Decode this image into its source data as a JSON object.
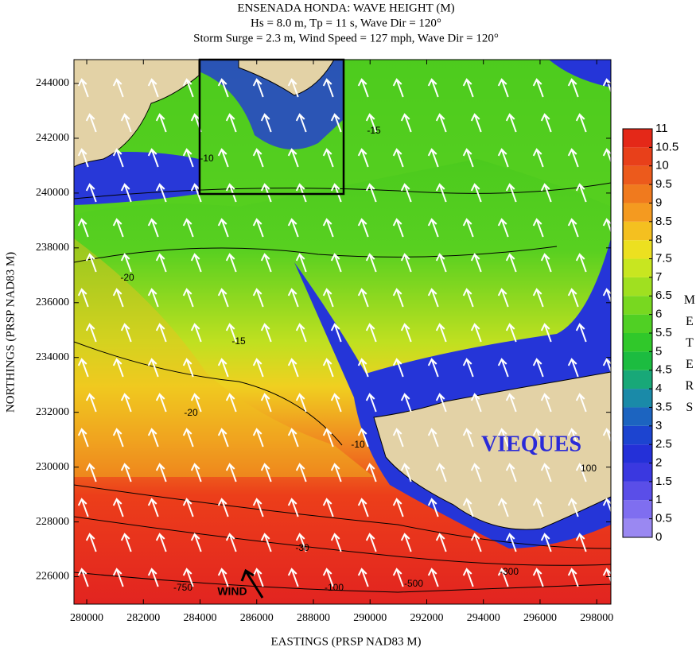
{
  "chart_data": {
    "type": "contour-map",
    "title": "ENSENADA HONDA: WAVE HEIGHT (M)",
    "subtitle": "Hs = 8.0 m, Tp = 11 s, Wave Dir = 120°",
    "subtitle2": "Storm Surge = 2.3 m, Wind Speed = 127 mph, Wave Dir = 120°",
    "x_label": "EASTINGS (PRSP NAD83 M)",
    "y_label": "NORTHINGS (PRSP NAD83 M)",
    "xlim": [
      279550,
      298500
    ],
    "xticks": [
      280000,
      282000,
      284000,
      286000,
      288000,
      290000,
      292000,
      294000,
      296000,
      298000
    ],
    "ylim": [
      225000,
      244870
    ],
    "yticks": [
      226000,
      228000,
      230000,
      232000,
      234000,
      236000,
      238000,
      240000,
      242000,
      244000
    ],
    "colorbar_label": "METERS",
    "colorbar_lim": [
      0,
      11
    ],
    "colorbar_ticks": [
      0,
      0.5,
      1,
      1.5,
      2,
      2.5,
      3,
      3.5,
      4,
      4.5,
      5,
      5.5,
      6,
      6.5,
      7,
      7.5,
      8,
      8.5,
      9,
      9.5,
      10,
      10.5,
      11
    ],
    "colors": [
      "#9a88f2",
      "#7f6ef0",
      "#5a4ee8",
      "#3a38e0",
      "#2430d8",
      "#1c44d0",
      "#1c64c0",
      "#1a8aa8",
      "#18a878",
      "#1cbc40",
      "#30c82a",
      "#50d024",
      "#78d820",
      "#a0e020",
      "#c8e620",
      "#ece020",
      "#f4c020",
      "#f49a20",
      "#f07a1e",
      "#ec5a1c",
      "#e8401a",
      "#e42818"
    ],
    "annotations": [
      "VIEQUES",
      "WIND"
    ],
    "contour_labels": [
      "-10",
      "-15",
      "-20",
      "-30",
      "-100",
      "-500",
      "-750",
      "-300",
      "100",
      "-10",
      "-15",
      "-20"
    ]
  }
}
